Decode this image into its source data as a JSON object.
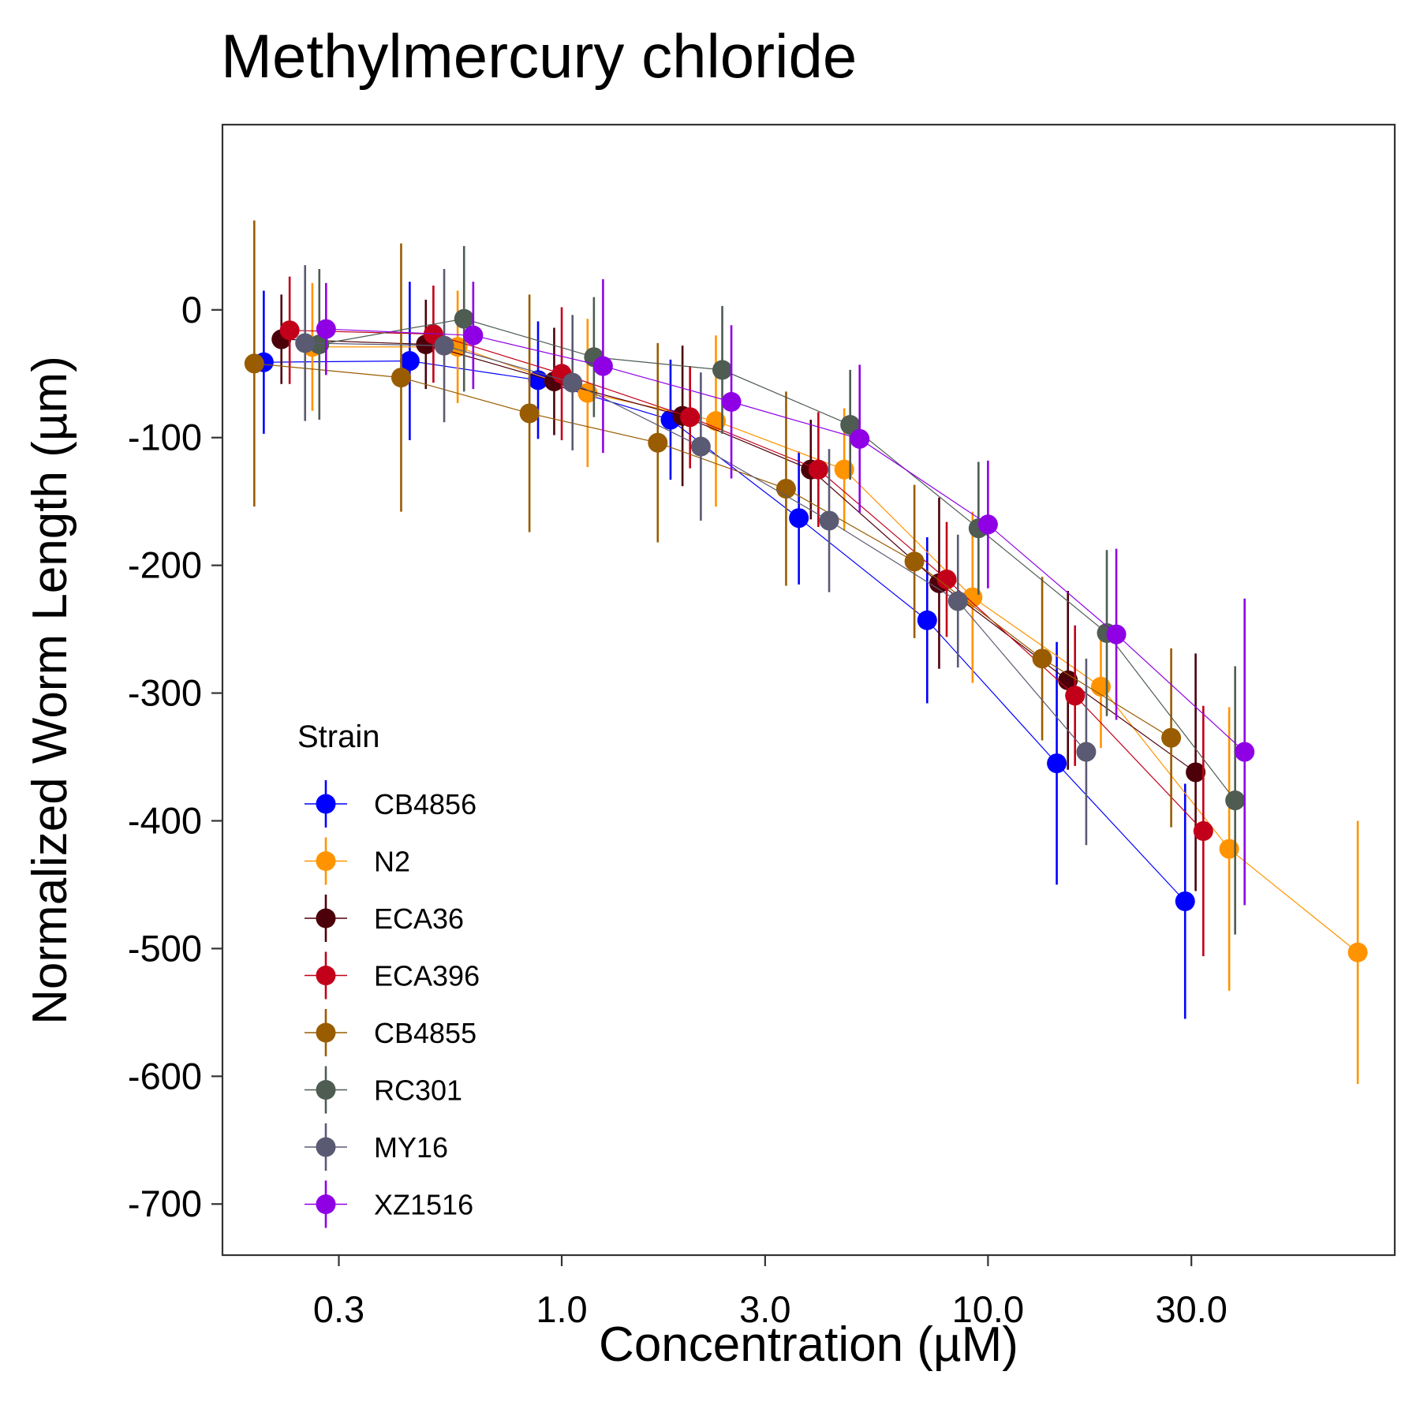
{
  "chart_data": {
    "type": "scatter",
    "title": "Methylmercury chloride",
    "xlabel": "Concentration (µM)",
    "ylabel": "Normalized Worm Length (µm)",
    "x_scale": "log10",
    "xlim": [
      0.16,
      90
    ],
    "ylim": [
      -740,
      145
    ],
    "x_ticks": [
      0.3,
      1.0,
      3.0,
      10.0,
      30.0
    ],
    "x_tick_labels": [
      "0.3",
      "1.0",
      "3.0",
      "10.0",
      "30.0"
    ],
    "y_ticks": [
      0,
      -100,
      -200,
      -300,
      -400,
      -500,
      -600,
      -700
    ],
    "y_tick_labels": [
      "0",
      "-100",
      "-200",
      "-300",
      "-400",
      "-500",
      "-600",
      "-700"
    ],
    "grid": false,
    "legend": {
      "title": "Strain",
      "position": "bottom-left inside"
    },
    "series": [
      {
        "name": "CB4856",
        "color": "#0000FF",
        "points": [
          {
            "x": 0.2,
            "y": -41,
            "err": 56
          },
          {
            "x": 0.44,
            "y": -40,
            "err": 62
          },
          {
            "x": 0.88,
            "y": -55,
            "err": 46
          },
          {
            "x": 1.8,
            "y": -86,
            "err": 47
          },
          {
            "x": 3.6,
            "y": -163,
            "err": 52
          },
          {
            "x": 7.2,
            "y": -243,
            "err": 65
          },
          {
            "x": 14.5,
            "y": -355,
            "err": 95
          },
          {
            "x": 29,
            "y": -463,
            "err": 92
          }
        ]
      },
      {
        "name": "N2",
        "color": "#FF9400",
        "points": [
          {
            "x": 0.26,
            "y": -29,
            "err": 50
          },
          {
            "x": 0.57,
            "y": -29,
            "err": 44
          },
          {
            "x": 1.15,
            "y": -65,
            "err": 58
          },
          {
            "x": 2.3,
            "y": -87,
            "err": 67
          },
          {
            "x": 4.6,
            "y": -125,
            "err": 48
          },
          {
            "x": 9.2,
            "y": -225,
            "err": 67
          },
          {
            "x": 18.4,
            "y": -295,
            "err": 48
          },
          {
            "x": 36.8,
            "y": -422,
            "err": 111
          },
          {
            "x": 73.7,
            "y": -503,
            "err": 103
          }
        ]
      },
      {
        "name": "ECA36",
        "color": "#4C000A",
        "points": [
          {
            "x": 0.22,
            "y": -23,
            "err": 35
          },
          {
            "x": 0.48,
            "y": -27,
            "err": 35
          },
          {
            "x": 0.96,
            "y": -56,
            "err": 42
          },
          {
            "x": 1.92,
            "y": -83,
            "err": 55
          },
          {
            "x": 3.84,
            "y": -125,
            "err": 39
          },
          {
            "x": 7.68,
            "y": -214,
            "err": 67
          },
          {
            "x": 15.4,
            "y": -290,
            "err": 70
          },
          {
            "x": 30.7,
            "y": -362,
            "err": 93
          }
        ]
      },
      {
        "name": "ECA396",
        "color": "#C20019",
        "points": [
          {
            "x": 0.23,
            "y": -16,
            "err": 42
          },
          {
            "x": 0.5,
            "y": -19,
            "err": 38
          },
          {
            "x": 1.0,
            "y": -50,
            "err": 52
          },
          {
            "x": 2.0,
            "y": -84,
            "err": 40
          },
          {
            "x": 4.0,
            "y": -125,
            "err": 45
          },
          {
            "x": 8.0,
            "y": -211,
            "err": 45
          },
          {
            "x": 16.0,
            "y": -302,
            "err": 55
          },
          {
            "x": 32.0,
            "y": -408,
            "err": 98
          }
        ]
      },
      {
        "name": "CB4855",
        "color": "#995C00",
        "points": [
          {
            "x": 0.19,
            "y": -42,
            "err": 112
          },
          {
            "x": 0.42,
            "y": -53,
            "err": 105
          },
          {
            "x": 0.84,
            "y": -81,
            "err": 93
          },
          {
            "x": 1.68,
            "y": -104,
            "err": 78
          },
          {
            "x": 3.36,
            "y": -140,
            "err": 76
          },
          {
            "x": 6.72,
            "y": -197,
            "err": 60
          },
          {
            "x": 13.4,
            "y": -273,
            "err": 64
          },
          {
            "x": 26.9,
            "y": -335,
            "err": 70
          }
        ]
      },
      {
        "name": "RC301",
        "color": "#4E5C52",
        "points": [
          {
            "x": 0.27,
            "y": -27,
            "err": 59
          },
          {
            "x": 0.59,
            "y": -7,
            "err": 57
          },
          {
            "x": 1.19,
            "y": -37,
            "err": 47
          },
          {
            "x": 2.38,
            "y": -47,
            "err": 50
          },
          {
            "x": 4.75,
            "y": -90,
            "err": 43
          },
          {
            "x": 9.5,
            "y": -171,
            "err": 52
          },
          {
            "x": 19.0,
            "y": -253,
            "err": 65
          },
          {
            "x": 38.0,
            "y": -384,
            "err": 105
          }
        ]
      },
      {
        "name": "MY16",
        "color": "#5A5A73",
        "points": [
          {
            "x": 0.25,
            "y": -26,
            "err": 61
          },
          {
            "x": 0.53,
            "y": -28,
            "err": 60
          },
          {
            "x": 1.06,
            "y": -57,
            "err": 53
          },
          {
            "x": 2.12,
            "y": -107,
            "err": 58
          },
          {
            "x": 4.24,
            "y": -165,
            "err": 56
          },
          {
            "x": 8.5,
            "y": -228,
            "err": 52
          },
          {
            "x": 17.0,
            "y": -346,
            "err": 73
          }
        ]
      },
      {
        "name": "XZ1516",
        "color": "#8F00E5",
        "points": [
          {
            "x": 0.28,
            "y": -15,
            "err": 36
          },
          {
            "x": 0.62,
            "y": -20,
            "err": 42
          },
          {
            "x": 1.25,
            "y": -44,
            "err": 68
          },
          {
            "x": 2.5,
            "y": -72,
            "err": 60
          },
          {
            "x": 5.0,
            "y": -101,
            "err": 58
          },
          {
            "x": 10.0,
            "y": -168,
            "err": 50
          },
          {
            "x": 20.0,
            "y": -254,
            "err": 67
          },
          {
            "x": 40.0,
            "y": -346,
            "err": 120
          }
        ]
      }
    ]
  }
}
